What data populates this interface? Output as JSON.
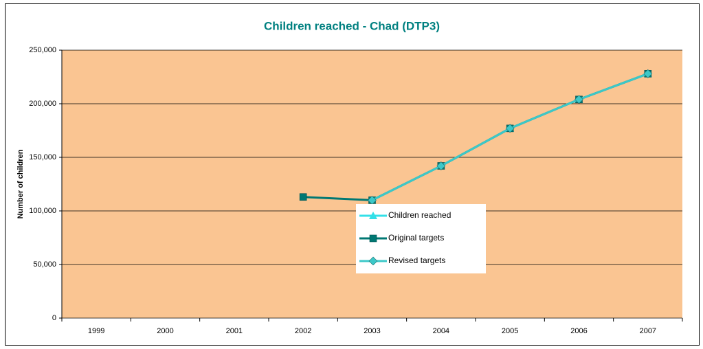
{
  "chart_data": {
    "type": "line",
    "title": "Children reached - Chad (DTP3)",
    "y_label": "Number of children",
    "categories": [
      "1999",
      "2000",
      "2001",
      "2002",
      "2003",
      "2004",
      "2005",
      "2006",
      "2007"
    ],
    "series": [
      {
        "name": "Children reached",
        "color": "#33e0e8",
        "marker": "triangle",
        "values": [
          null,
          null,
          null,
          null,
          110000,
          142000,
          177000,
          204000,
          228000
        ]
      },
      {
        "name": "Original targets",
        "color": "#007873",
        "marker": "square",
        "values": [
          null,
          null,
          null,
          113000,
          110000,
          142000,
          177000,
          204000,
          228000
        ]
      },
      {
        "name": "Revised targets",
        "color": "#3cc8c8",
        "marker": "diamond",
        "values": [
          null,
          null,
          null,
          null,
          110000,
          142000,
          177000,
          204000,
          228000
        ]
      }
    ],
    "ylim": [
      0,
      250000
    ],
    "yticks": [
      0,
      {
        "value": 50000,
        "label": "50,000"
      },
      {
        "value": 100000,
        "label": "100,000"
      },
      {
        "value": 150000,
        "label": "150,000"
      },
      {
        "value": 200000,
        "label": "200,000"
      },
      {
        "value": 250000,
        "label": "250,000"
      }
    ],
    "grid": true,
    "background": "#fac592"
  }
}
